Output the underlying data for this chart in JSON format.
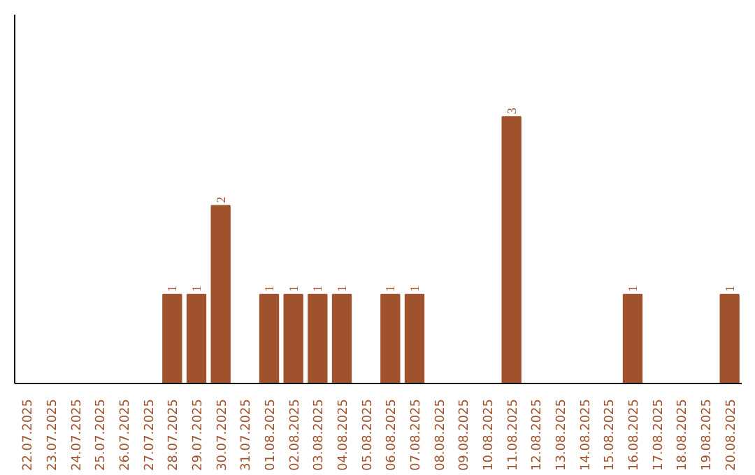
{
  "chart_data": {
    "type": "bar",
    "categories": [
      "22.07.2025",
      "23.07.2025",
      "24.07.2025",
      "25.07.2025",
      "26.07.2025",
      "27.07.2025",
      "28.07.2025",
      "29.07.2025",
      "30.07.2025",
      "31.07.2025",
      "01.08.2025",
      "02.08.2025",
      "03.08.2025",
      "04.08.2025",
      "05.08.2025",
      "06.08.2025",
      "07.08.2025",
      "08.08.2025",
      "09.08.2025",
      "10.08.2025",
      "11.08.2025",
      "12.08.2025",
      "13.08.2025",
      "14.08.2025",
      "15.08.2025",
      "16.08.2025",
      "17.08.2025",
      "18.08.2025",
      "19.08.2025",
      "20.08.2025"
    ],
    "values": [
      0,
      0,
      0,
      0,
      0,
      0,
      1,
      1,
      2,
      0,
      1,
      1,
      1,
      1,
      0,
      1,
      1,
      0,
      0,
      0,
      3,
      0,
      0,
      0,
      0,
      1,
      0,
      0,
      0,
      1
    ],
    "value_labels": [
      null,
      null,
      null,
      null,
      null,
      null,
      "1",
      "1",
      "2",
      null,
      "1",
      "1",
      "1",
      "1",
      null,
      "1",
      "1",
      null,
      null,
      null,
      "3",
      null,
      null,
      null,
      null,
      "1",
      null,
      null,
      null,
      "1"
    ],
    "color": "#a0522d",
    "ylim": [
      0,
      4.15
    ],
    "grid": false
  }
}
